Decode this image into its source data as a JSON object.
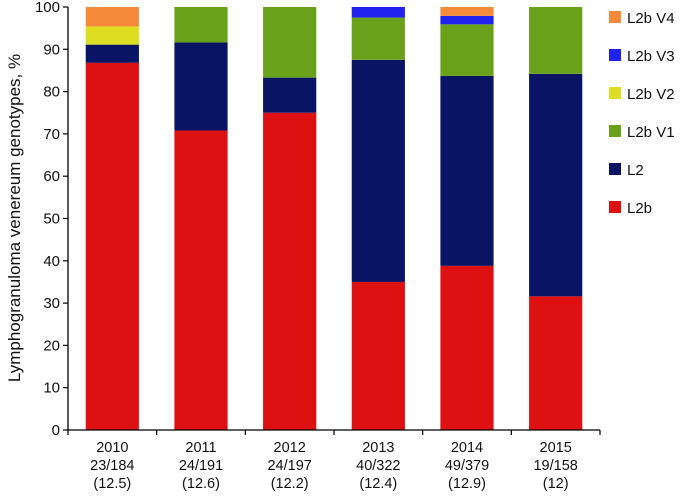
{
  "chart_data": {
    "type": "bar",
    "stacked": true,
    "ylabel": "Lymphogranuloma venereum genotypes, %",
    "ylim": [
      0,
      100
    ],
    "yticks": [
      0,
      10,
      20,
      30,
      40,
      50,
      60,
      70,
      80,
      90,
      100
    ],
    "categories": [
      [
        "2010",
        "23/184",
        "(12.5)"
      ],
      [
        "2011",
        "24/191",
        "(12.6)"
      ],
      [
        "2012",
        "24/197",
        "(12.2)"
      ],
      [
        "2013",
        "40/322",
        "(12.4)"
      ],
      [
        "2014",
        "49/379",
        "(12.9)"
      ],
      [
        "2015",
        "19/158",
        "(12)"
      ]
    ],
    "series": [
      {
        "name": "L2b",
        "color": "#dd1111",
        "values": [
          86.8,
          70.8,
          75.0,
          35.0,
          38.8,
          31.6
        ]
      },
      {
        "name": "L2",
        "color": "#0a1464",
        "values": [
          4.3,
          20.8,
          8.3,
          52.5,
          44.9,
          52.6
        ]
      },
      {
        "name": "L2b V1",
        "color": "#6aa11a",
        "values": [
          0,
          8.4,
          16.7,
          10.0,
          12.2,
          15.8
        ]
      },
      {
        "name": "L2b V2",
        "color": "#dddd22",
        "values": [
          4.3,
          0,
          0,
          0,
          0,
          0
        ]
      },
      {
        "name": "L2b V3",
        "color": "#2222ee",
        "values": [
          0,
          0,
          0,
          2.5,
          2.0,
          0
        ]
      },
      {
        "name": "L2b V4",
        "color": "#f58a3a",
        "values": [
          4.6,
          0,
          0,
          0,
          2.1,
          0
        ]
      }
    ],
    "legend": [
      "L2b V4",
      "L2b V3",
      "L2b V2",
      "L2b V1",
      "L2",
      "L2b"
    ],
    "legend_position": "right",
    "grid": false
  }
}
